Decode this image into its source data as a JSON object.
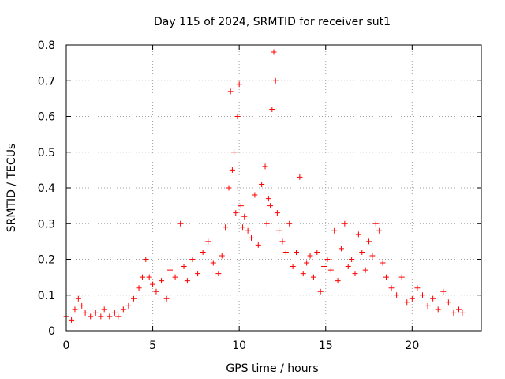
{
  "chart_data": {
    "type": "scatter",
    "title": "Day 115 of 2024, SRMTID for receiver sut1",
    "xlabel": "GPS time / hours",
    "ylabel": "SRMTID / TECUs",
    "xlim": [
      0,
      24
    ],
    "ylim": [
      0,
      0.8
    ],
    "x_ticks": [
      0,
      5,
      10,
      15,
      20
    ],
    "x_tick_labels": [
      "0",
      "5",
      "10",
      "15",
      "20"
    ],
    "y_ticks": [
      0,
      0.1,
      0.2,
      0.3,
      0.4,
      0.5,
      0.6,
      0.7,
      0.8
    ],
    "y_tick_labels": [
      "0",
      "0.1",
      "0.2",
      "0.3",
      "0.4",
      "0.5",
      "0.6",
      "0.7",
      "0.8"
    ],
    "grid": true,
    "marker": "+",
    "color": "#ff0000",
    "series": [
      {
        "name": "SRMTID",
        "x": [
          0.0,
          0.3,
          0.5,
          0.7,
          0.9,
          1.1,
          1.4,
          1.7,
          2.0,
          2.2,
          2.5,
          2.8,
          3.0,
          3.3,
          3.6,
          3.9,
          4.2,
          4.4,
          4.6,
          4.8,
          5.0,
          5.2,
          5.5,
          5.8,
          6.0,
          6.3,
          6.6,
          6.8,
          7.0,
          7.3,
          7.6,
          7.9,
          8.2,
          8.5,
          8.8,
          9.0,
          9.2,
          9.4,
          9.5,
          9.6,
          9.7,
          9.8,
          9.9,
          10.0,
          10.1,
          10.2,
          10.3,
          10.5,
          10.7,
          10.9,
          11.1,
          11.3,
          11.5,
          11.6,
          11.7,
          11.8,
          11.9,
          12.0,
          12.1,
          12.2,
          12.3,
          12.5,
          12.7,
          12.9,
          13.1,
          13.3,
          13.5,
          13.7,
          13.9,
          14.1,
          14.3,
          14.5,
          14.7,
          14.9,
          15.1,
          15.3,
          15.5,
          15.7,
          15.9,
          16.1,
          16.3,
          16.5,
          16.7,
          16.9,
          17.1,
          17.3,
          17.5,
          17.7,
          17.9,
          18.1,
          18.3,
          18.5,
          18.8,
          19.1,
          19.4,
          19.7,
          20.0,
          20.3,
          20.6,
          20.9,
          21.2,
          21.5,
          21.8,
          22.1,
          22.4,
          22.7,
          22.9
        ],
        "y": [
          0.04,
          0.03,
          0.06,
          0.09,
          0.07,
          0.05,
          0.04,
          0.05,
          0.04,
          0.06,
          0.04,
          0.05,
          0.04,
          0.06,
          0.07,
          0.09,
          0.12,
          0.15,
          0.2,
          0.15,
          0.13,
          0.11,
          0.14,
          0.09,
          0.17,
          0.15,
          0.3,
          0.18,
          0.14,
          0.2,
          0.16,
          0.22,
          0.25,
          0.19,
          0.16,
          0.21,
          0.29,
          0.4,
          0.67,
          0.45,
          0.5,
          0.33,
          0.6,
          0.69,
          0.35,
          0.29,
          0.32,
          0.28,
          0.26,
          0.38,
          0.24,
          0.41,
          0.46,
          0.3,
          0.37,
          0.35,
          0.62,
          0.78,
          0.7,
          0.33,
          0.28,
          0.25,
          0.22,
          0.3,
          0.18,
          0.22,
          0.43,
          0.16,
          0.19,
          0.21,
          0.15,
          0.22,
          0.11,
          0.18,
          0.2,
          0.17,
          0.28,
          0.14,
          0.23,
          0.3,
          0.18,
          0.2,
          0.16,
          0.27,
          0.22,
          0.17,
          0.25,
          0.21,
          0.3,
          0.28,
          0.19,
          0.15,
          0.12,
          0.1,
          0.15,
          0.08,
          0.09,
          0.12,
          0.1,
          0.07,
          0.09,
          0.06,
          0.11,
          0.08,
          0.05,
          0.06,
          0.05
        ]
      }
    ]
  }
}
